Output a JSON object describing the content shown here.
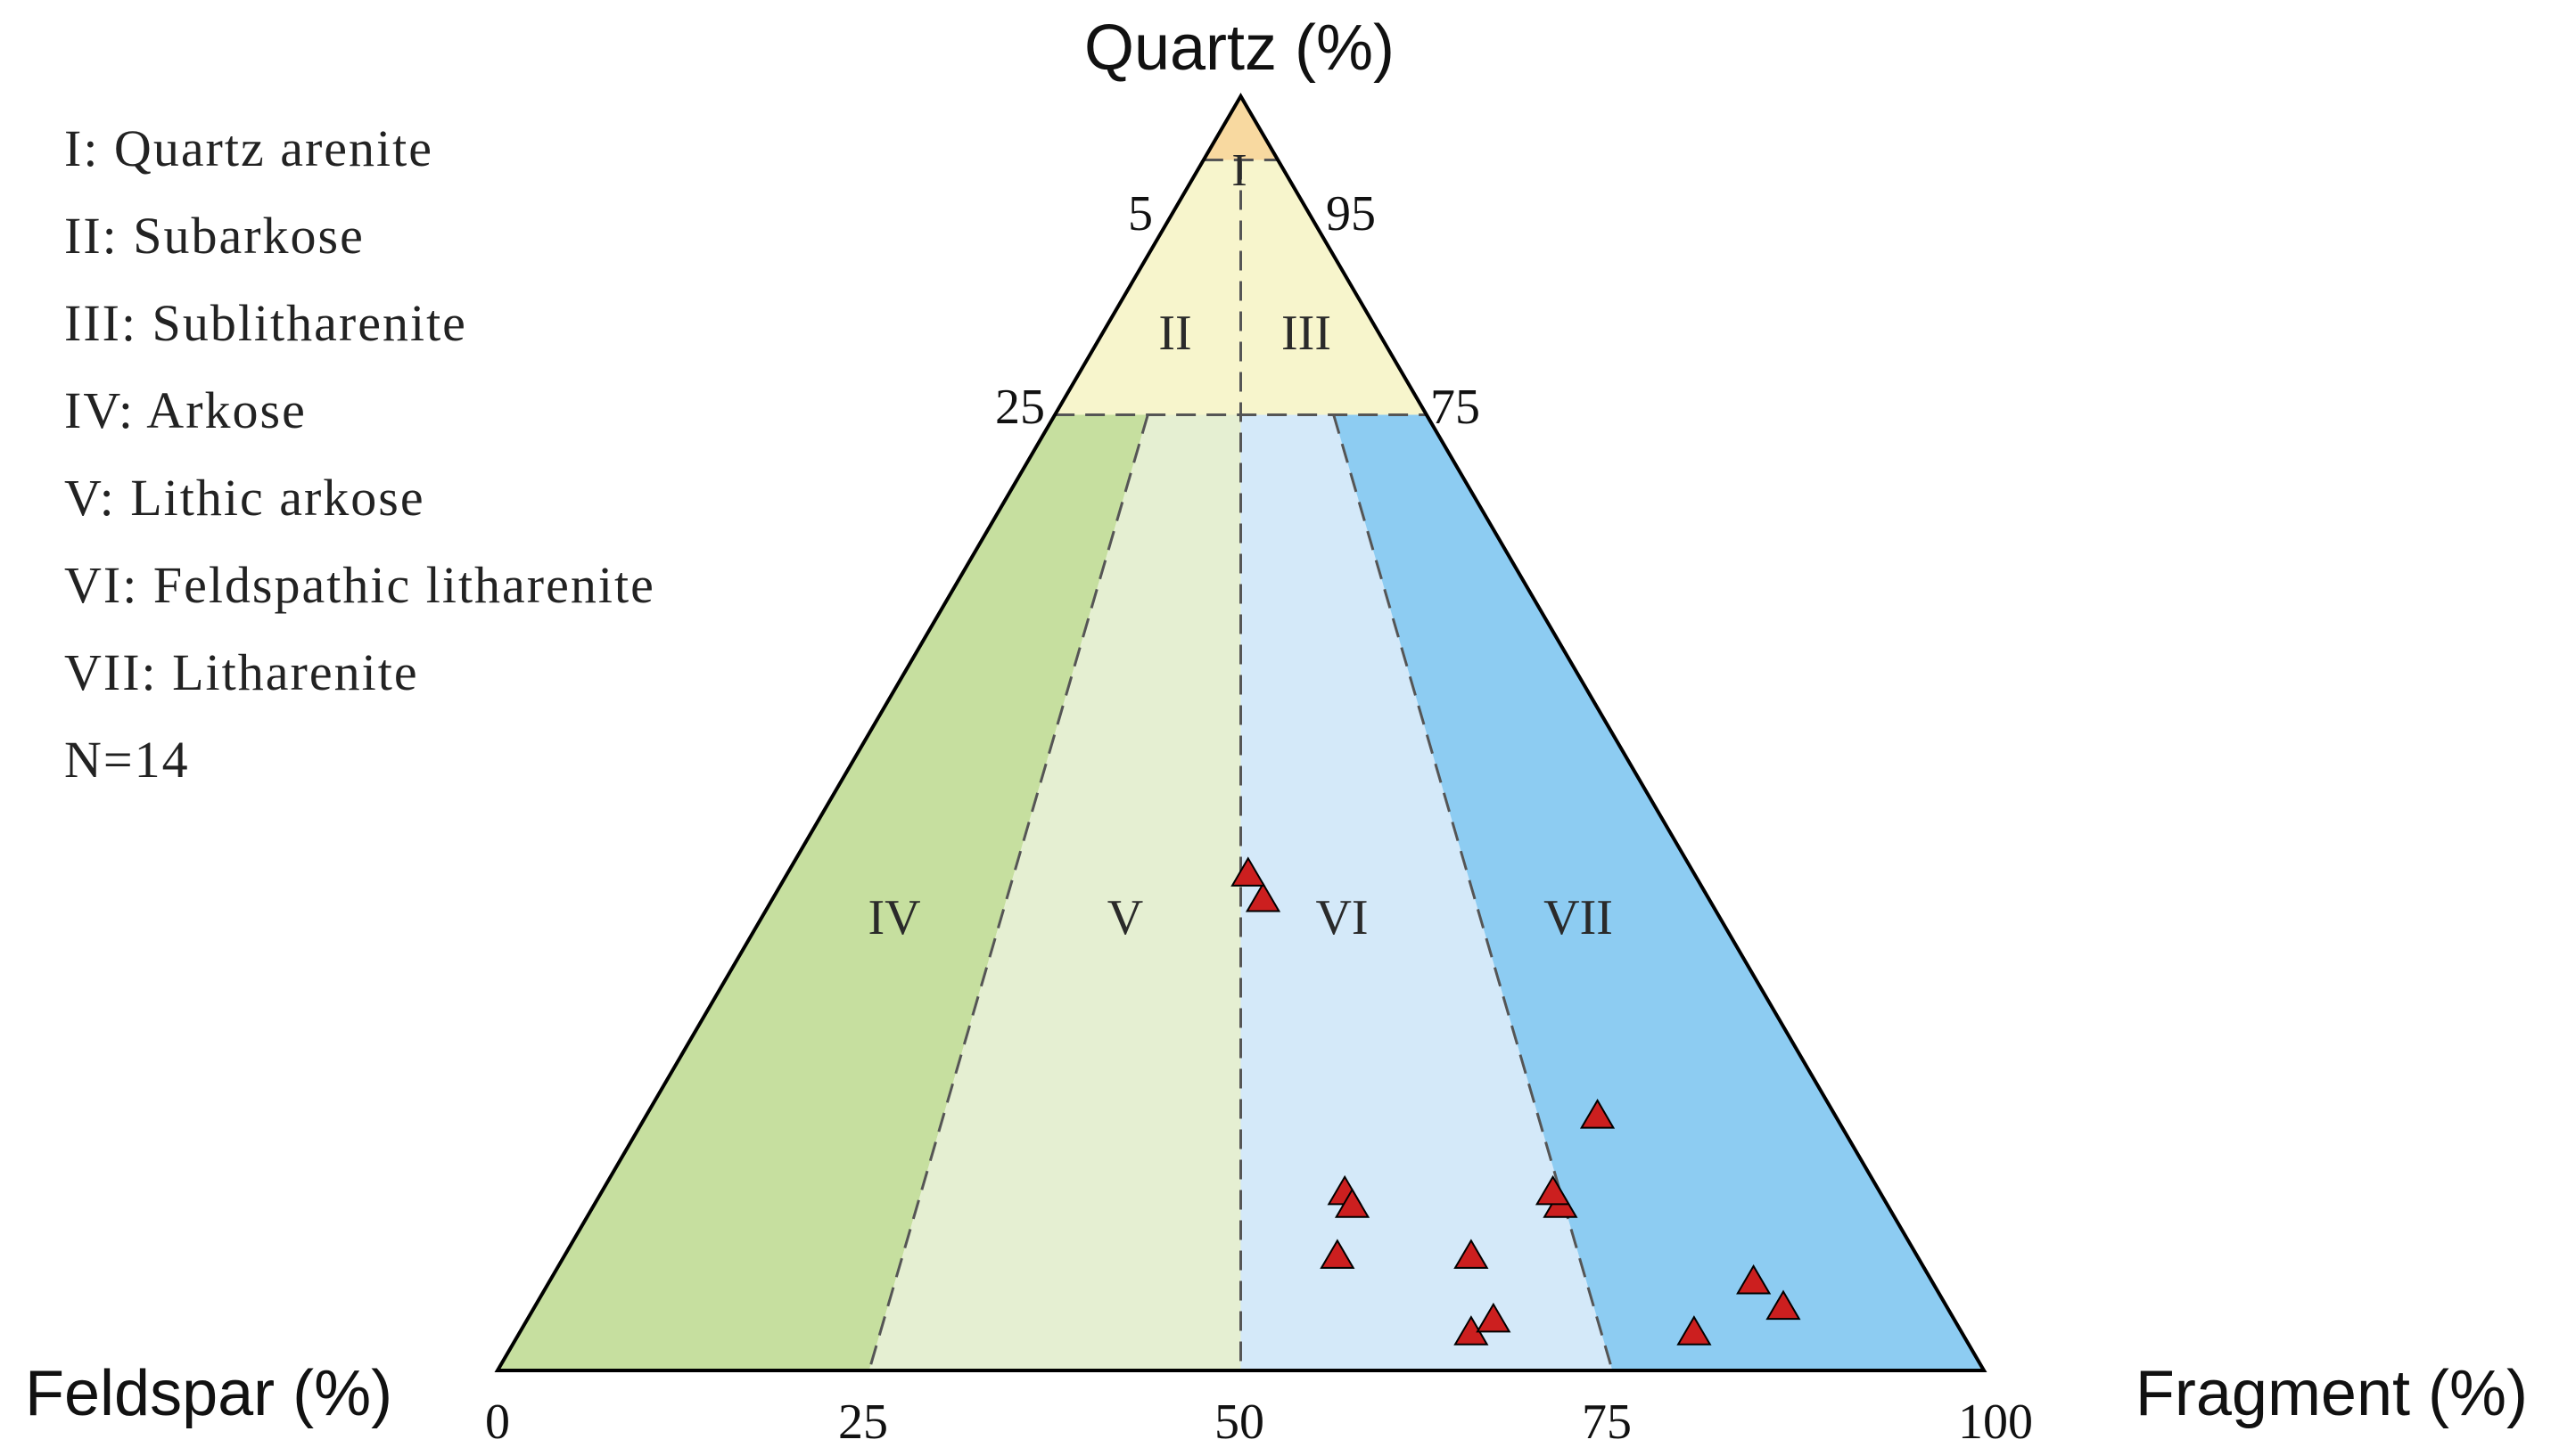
{
  "chart_data": {
    "type": "scatter",
    "subtype": "ternary",
    "apices": {
      "top": "Quartz (%)",
      "left": "Feldspar (%)",
      "right": "Fragment (%)"
    },
    "base_ticks": [
      "0",
      "25",
      "50",
      "75",
      "100"
    ],
    "quartz_ticks": {
      "q95_left": "5",
      "q95_right": "95",
      "q75_left": "25",
      "q75_right": "75"
    },
    "legend": [
      "I: Quartz arenite",
      "II: Subarkose",
      "III: Sublitharenite",
      "IV: Arkose",
      "V: Lithic arkose",
      "VI: Feldspathic litharenite",
      "VII: Litharenite"
    ],
    "sample_count": "N=14",
    "fields": [
      {
        "id": "I",
        "label": "I",
        "color": "#f8d9a0"
      },
      {
        "id": "II",
        "label": "II",
        "color": "#f7f5cc"
      },
      {
        "id": "III",
        "label": "III",
        "color": "#f7f5cc"
      },
      {
        "id": "IV",
        "label": "IV",
        "color": "#c6df9f"
      },
      {
        "id": "V",
        "label": "V",
        "color": "#e5efd2"
      },
      {
        "id": "VI",
        "label": "VI",
        "color": "#d4e9f9"
      },
      {
        "id": "VII",
        "label": "VII",
        "color": "#8dccf2"
      }
    ],
    "marker_color": "#cc1f1f",
    "points": [
      {
        "Q": 37,
        "F": 30,
        "R": 33
      },
      {
        "Q": 39,
        "F": 30,
        "R": 31
      },
      {
        "Q": 20,
        "F": 16,
        "R": 64
      },
      {
        "Q": 14,
        "F": 36,
        "R": 50
      },
      {
        "Q": 13,
        "F": 36,
        "R": 51
      },
      {
        "Q": 9,
        "F": 39,
        "R": 52
      },
      {
        "Q": 9,
        "F": 30,
        "R": 61
      },
      {
        "Q": 3,
        "F": 33,
        "R": 64
      },
      {
        "Q": 4,
        "F": 31,
        "R": 65
      },
      {
        "Q": 13,
        "F": 22,
        "R": 65
      },
      {
        "Q": 14,
        "F": 22,
        "R": 64
      },
      {
        "Q": 7,
        "F": 12,
        "R": 81
      },
      {
        "Q": 5,
        "F": 11,
        "R": 84
      },
      {
        "Q": 3,
        "F": 18,
        "R": 79
      }
    ]
  }
}
